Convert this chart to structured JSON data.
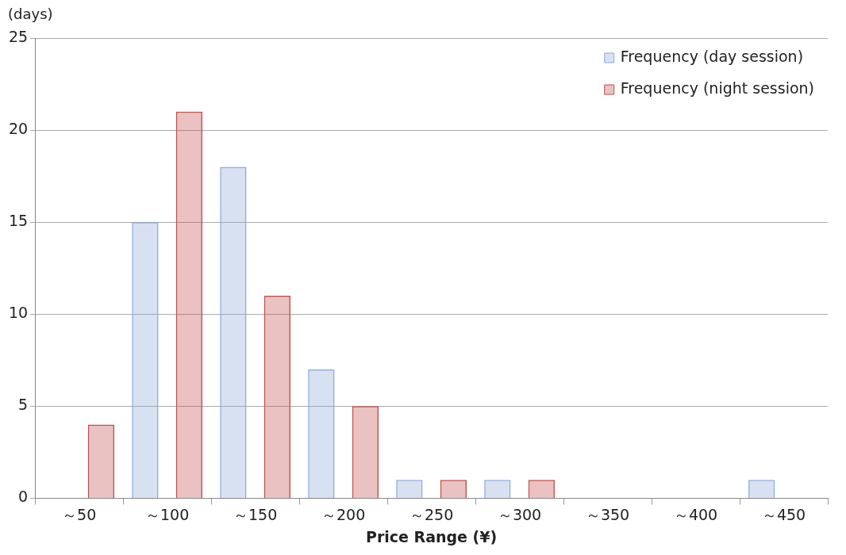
{
  "chart_data": {
    "type": "bar",
    "xlabel": "Price Range (¥)",
    "ylabel": "(days)",
    "categories": [
      "～50",
      "～100",
      "～150",
      "～200",
      "～250",
      "～300",
      "～350",
      "～400",
      "～450"
    ],
    "series": [
      {
        "name": "Frequency (day session)",
        "color": "#8eaadb",
        "values": [
          0,
          15,
          18,
          7,
          1,
          1,
          0,
          0,
          1
        ]
      },
      {
        "name": "Frequency (night session)",
        "color": "#c0504d",
        "values": [
          4,
          21,
          11,
          5,
          1,
          1,
          0,
          0,
          0
        ]
      }
    ],
    "ylim": [
      0,
      25
    ],
    "yticks": [
      0,
      5,
      10,
      15,
      20,
      25
    ],
    "grid": "y",
    "legend": "top right"
  }
}
